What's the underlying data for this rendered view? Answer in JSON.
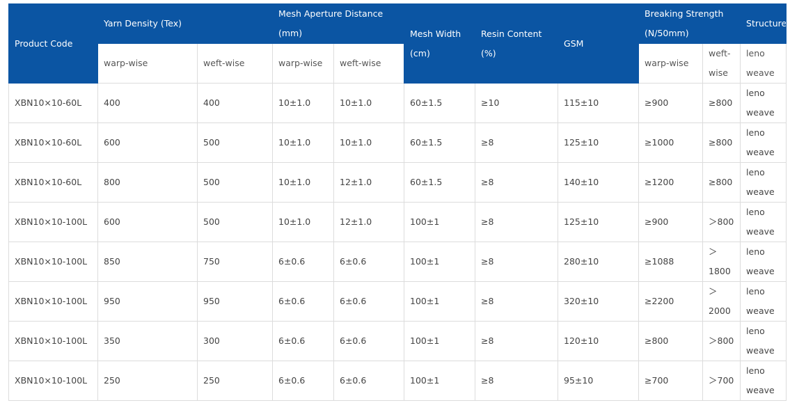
{
  "table": {
    "header_top": [
      "Product Code",
      "Yarn Density (Tex)",
      "Mesh Aperture Distance (mm)",
      "Mesh Width (cm)",
      "Resin Content (%)",
      "GSM",
      "Breaking Strength (N/50mm)",
      "Structure"
    ],
    "header_sub": [
      "warp-wise",
      "weft-wise",
      "warp-wise",
      "weft-wise",
      "warp-wise",
      "weft-wise",
      "leno weave"
    ],
    "rows": [
      [
        "XBN10×10-60L",
        "400",
        "400",
        "10±1.0",
        "10±1.0",
        "60±1.5",
        "≥10",
        "115±10",
        "≥900",
        "≥800",
        "leno weave"
      ],
      [
        "XBN10×10-60L",
        "600",
        "500",
        "10±1.0",
        "10±1.0",
        "60±1.5",
        "≥8",
        "125±10",
        "≥1000",
        "≥800",
        "leno weave"
      ],
      [
        "XBN10×10-60L",
        "800",
        "500",
        "10±1.0",
        "12±1.0",
        "60±1.5",
        "≥8",
        "140±10",
        "≥1200",
        "≥800",
        "leno weave"
      ],
      [
        "XBN10×10-100L",
        "600",
        "500",
        "10±1.0",
        "12±1.0",
        "100±1",
        "≥8",
        "125±10",
        "≥900",
        "＞800",
        "leno weave"
      ],
      [
        "XBN10×10-100L",
        "850",
        "750",
        "6±0.6",
        "6±0.6",
        "100±1",
        "≥8",
        "280±10",
        "≥1088",
        "＞1800",
        "leno weave"
      ],
      [
        "XBN10×10-100L",
        "950",
        "950",
        "6±0.6",
        "6±0.6",
        "100±1",
        "≥8",
        "320±10",
        "≥2200",
        "＞2000",
        "leno weave"
      ],
      [
        "XBN10×10-100L",
        "350",
        "300",
        "6±0.6",
        "6±0.6",
        "100±1",
        "≥8",
        "120±10",
        "≥800",
        "＞800",
        "leno weave"
      ],
      [
        "XBN10×10-100L",
        "250",
        "250",
        "6±0.6",
        "6±0.6",
        "100±1",
        "≥8",
        "95±10",
        "≥700",
        "＞700",
        "leno weave"
      ]
    ]
  }
}
